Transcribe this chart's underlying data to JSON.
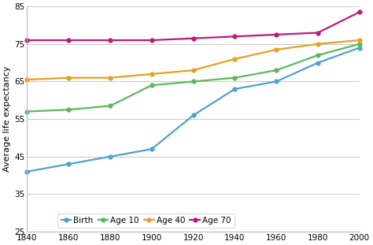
{
  "years": [
    1840,
    1860,
    1880,
    1900,
    1920,
    1940,
    1960,
    1980,
    2000
  ],
  "birth": [
    41,
    43,
    45,
    47,
    56,
    63,
    65,
    70,
    74
  ],
  "age10": [
    57,
    57.5,
    58.5,
    64,
    65,
    66,
    68,
    72,
    75
  ],
  "age40": [
    65.5,
    66,
    66,
    67,
    68,
    71,
    73.5,
    75,
    76
  ],
  "age70": [
    76,
    76,
    76,
    76,
    76.5,
    77,
    77.5,
    78,
    83.5
  ],
  "colors": {
    "birth": "#4ba3d3",
    "age10": "#5cb85c",
    "age40": "#e8a020",
    "age70": "#c0187a"
  },
  "labels": [
    "Birth",
    "Age 10",
    "Age 40",
    "Age 70"
  ],
  "ylabel": "Average life expectancy",
  "ylim": [
    25,
    85
  ],
  "xlim": [
    1840,
    2000
  ],
  "yticks": [
    25,
    35,
    45,
    55,
    65,
    75,
    85
  ],
  "xticks": [
    1840,
    1860,
    1880,
    1900,
    1920,
    1940,
    1960,
    1980,
    2000
  ],
  "grid_color": "#cccccc",
  "background_color": "#ffffff",
  "figsize": [
    4.74,
    3.11
  ],
  "dpi": 100
}
